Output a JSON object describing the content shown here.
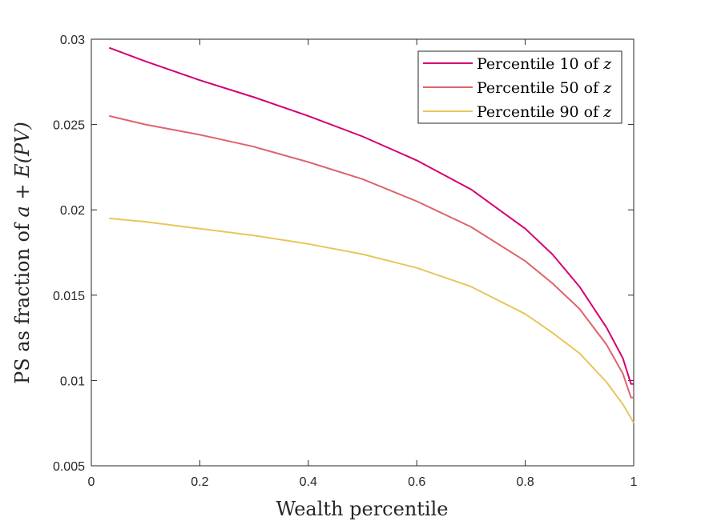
{
  "chart_data": {
    "type": "line",
    "xlabel": "Wealth percentile",
    "ylabel_prefix": "PS as fraction of ",
    "ylabel_math": "a + E(PV)",
    "xlim": [
      0,
      1
    ],
    "ylim": [
      0.005,
      0.03
    ],
    "x_ticks": [
      0,
      0.2,
      0.4,
      0.6,
      0.8,
      1
    ],
    "x_tick_labels": [
      "0",
      "0.2",
      "0.4",
      "0.6",
      "0.8",
      "1"
    ],
    "y_ticks": [
      0.005,
      0.01,
      0.015,
      0.02,
      0.025,
      0.03
    ],
    "y_tick_labels": [
      "0.005",
      "0.01",
      "0.015",
      "0.02",
      "0.025",
      "0.03"
    ],
    "grid": false,
    "legend_position": "top-right",
    "series": [
      {
        "name": "Percentile 10 of z",
        "name_prefix": "Percentile 10 of ",
        "name_math": "z",
        "color": "#d6006f",
        "x": [
          0.033,
          0.1,
          0.2,
          0.3,
          0.4,
          0.5,
          0.6,
          0.7,
          0.8,
          0.85,
          0.9,
          0.95,
          0.98,
          0.995,
          1.0
        ],
        "y": [
          0.0295,
          0.0287,
          0.0276,
          0.0266,
          0.0255,
          0.0243,
          0.0229,
          0.0212,
          0.0189,
          0.0174,
          0.0155,
          0.0131,
          0.0113,
          0.0098,
          0.0098
        ]
      },
      {
        "name": "Percentile 50 of z",
        "name_prefix": "Percentile 50 of ",
        "name_math": "z",
        "color": "#e0636b",
        "x": [
          0.033,
          0.1,
          0.2,
          0.3,
          0.31,
          0.4,
          0.5,
          0.6,
          0.7,
          0.8,
          0.85,
          0.9,
          0.95,
          0.98,
          0.995,
          1.0
        ],
        "y": [
          0.0255,
          0.025,
          0.0244,
          0.0237,
          0.0236,
          0.0228,
          0.0218,
          0.0205,
          0.019,
          0.017,
          0.0157,
          0.0142,
          0.0121,
          0.0104,
          0.009,
          0.009
        ]
      },
      {
        "name": "Percentile 90 of z",
        "name_prefix": "Percentile 90 of ",
        "name_math": "z",
        "color": "#e8c65c",
        "x": [
          0.033,
          0.1,
          0.2,
          0.3,
          0.4,
          0.5,
          0.6,
          0.7,
          0.8,
          0.85,
          0.9,
          0.95,
          0.98,
          0.995,
          1.0
        ],
        "y": [
          0.0195,
          0.0193,
          0.0189,
          0.0185,
          0.018,
          0.0174,
          0.0166,
          0.0155,
          0.0139,
          0.0128,
          0.0116,
          0.0099,
          0.0086,
          0.0078,
          0.0075
        ]
      }
    ]
  }
}
